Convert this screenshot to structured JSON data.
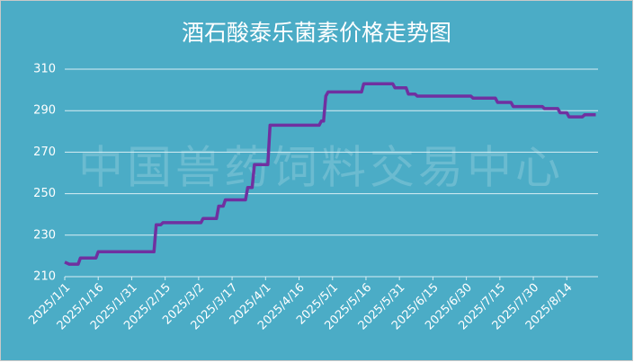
{
  "chart_data": {
    "type": "line",
    "title": "酒石酸泰乐菌素价格走势图",
    "watermark": "中国兽药饲料交易中心",
    "x": [
      "2025/1/1",
      "2025/1/3",
      "2025/1/7",
      "2025/1/8",
      "2025/1/15",
      "2025/1/16",
      "2025/2/10",
      "2025/2/11",
      "2025/2/13",
      "2025/2/14",
      "2025/3/3",
      "2025/3/4",
      "2025/3/10",
      "2025/3/11",
      "2025/3/13",
      "2025/3/14",
      "2025/3/23",
      "2025/3/24",
      "2025/3/26",
      "2025/3/27",
      "2025/4/2",
      "2025/4/3",
      "2025/4/25",
      "2025/4/26",
      "2025/4/27",
      "2025/4/28",
      "2025/4/29",
      "2025/5/14",
      "2025/5/15",
      "2025/5/28",
      "2025/5/29",
      "2025/6/3",
      "2025/6/4",
      "2025/6/7",
      "2025/6/8",
      "2025/7/2",
      "2025/7/3",
      "2025/7/13",
      "2025/7/14",
      "2025/7/20",
      "2025/7/21",
      "2025/8/3",
      "2025/8/4",
      "2025/8/10",
      "2025/8/11",
      "2025/8/14",
      "2025/8/15",
      "2025/8/21",
      "2025/8/22",
      "2025/8/27"
    ],
    "series": [
      {
        "color": "#7030a0",
        "values": [
          217,
          216,
          216,
          219,
          219,
          222,
          222,
          235,
          235,
          236,
          236,
          238,
          238,
          244,
          244,
          247,
          247,
          253,
          253,
          264,
          264,
          283,
          283,
          285,
          285,
          297,
          299,
          299,
          303,
          303,
          301,
          301,
          298,
          298,
          297,
          297,
          296,
          296,
          294,
          294,
          292,
          292,
          291,
          291,
          289,
          289,
          287,
          287,
          288,
          288
        ]
      }
    ],
    "xlim": [
      "2025/1/1",
      "2025/8/28"
    ],
    "xticks": [
      "2025/1/1",
      "2025/1/16",
      "2025/1/31",
      "2025/2/15",
      "2025/3/2",
      "2025/3/17",
      "2025/4/1",
      "2025/4/16",
      "2025/5/1",
      "2025/5/16",
      "2025/5/31",
      "2025/6/15",
      "2025/6/30",
      "2025/7/15",
      "2025/7/30",
      "2025/8/14"
    ],
    "ylim": [
      210,
      310
    ],
    "yticks": [
      210,
      230,
      250,
      270,
      290,
      310
    ],
    "grid": true,
    "background": "#4bacc6"
  }
}
